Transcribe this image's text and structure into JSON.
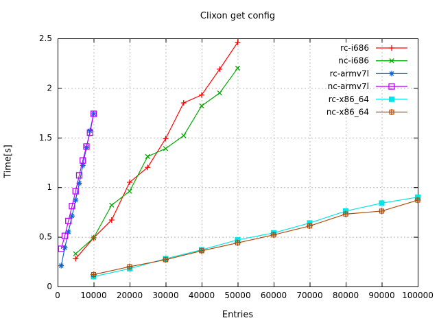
{
  "chart_data": {
    "type": "line",
    "title": "Clixon get config",
    "xlabel": "Entries",
    "ylabel": "Time[s]",
    "xlim": [
      0,
      100000
    ],
    "ylim": [
      0,
      2.5
    ],
    "xticks": [
      0,
      10000,
      20000,
      30000,
      40000,
      50000,
      60000,
      70000,
      80000,
      90000,
      100000
    ],
    "xtick_labels": [
      "0",
      "10000",
      "20000",
      "30000",
      "40000",
      "50000",
      "60000",
      "70000",
      "80000",
      "90000",
      "100000"
    ],
    "yticks": [
      0,
      0.5,
      1,
      1.5,
      2,
      2.5
    ],
    "ytick_labels": [
      "0",
      "0.5",
      "1",
      "1.5",
      "2",
      "2.5"
    ],
    "grid": true,
    "legend_position": "top-right-inside",
    "series": [
      {
        "name": "rc-i686",
        "color": "#ff0000",
        "marker": "plus",
        "x": [
          5000,
          10000,
          15000,
          20000,
          25000,
          30000,
          35000,
          40000,
          45000,
          50000
        ],
        "y": [
          0.28,
          0.49,
          0.67,
          1.05,
          1.2,
          1.49,
          1.85,
          1.93,
          2.19,
          2.46
        ]
      },
      {
        "name": "nc-i686",
        "color": "#00a800",
        "marker": "cross",
        "x": [
          5000,
          10000,
          15000,
          20000,
          25000,
          30000,
          35000,
          40000,
          45000,
          50000
        ],
        "y": [
          0.33,
          0.49,
          0.82,
          0.96,
          1.31,
          1.39,
          1.52,
          1.82,
          1.95,
          2.2
        ]
      },
      {
        "name": "rc-armv7l",
        "color": "#0a64d8",
        "marker": "asterisk",
        "x": [
          1000,
          2000,
          3000,
          4000,
          5000,
          6000,
          7000,
          8000,
          9000,
          10000
        ],
        "y": [
          0.21,
          0.39,
          0.55,
          0.71,
          0.87,
          1.04,
          1.22,
          1.4,
          1.57,
          1.74
        ]
      },
      {
        "name": "nc-armv7l",
        "color": "#bf00ff",
        "marker": "open-square",
        "x": [
          1000,
          2000,
          3000,
          4000,
          5000,
          6000,
          7000,
          8000,
          9000,
          10000
        ],
        "y": [
          0.38,
          0.51,
          0.66,
          0.81,
          0.96,
          1.12,
          1.27,
          1.41,
          1.55,
          1.74
        ]
      },
      {
        "name": "rc-x86_64",
        "color": "#00e5e5",
        "marker": "filled-square",
        "x": [
          10000,
          20000,
          30000,
          40000,
          50000,
          60000,
          70000,
          80000,
          90000,
          100000
        ],
        "y": [
          0.1,
          0.18,
          0.28,
          0.37,
          0.47,
          0.54,
          0.64,
          0.76,
          0.84,
          0.9
        ]
      },
      {
        "name": "nc-x86_64",
        "color": "#b04a0a",
        "marker": "crossed-square",
        "x": [
          10000,
          20000,
          30000,
          40000,
          50000,
          60000,
          70000,
          80000,
          90000,
          100000
        ],
        "y": [
          0.12,
          0.2,
          0.27,
          0.36,
          0.44,
          0.52,
          0.61,
          0.73,
          0.76,
          0.87
        ]
      }
    ]
  }
}
